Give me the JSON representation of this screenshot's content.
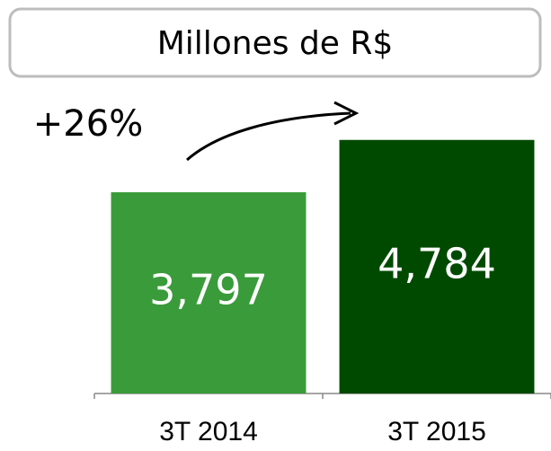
{
  "chart_data": {
    "type": "bar",
    "title": "Millones de R$",
    "annotation": "+26%",
    "categories": [
      "3T 2014",
      "3T 2015"
    ],
    "values": [
      3797,
      4784
    ],
    "value_labels": [
      "3,797",
      "4,784"
    ],
    "colors": [
      "#3a9b3a",
      "#004a00"
    ],
    "ylim": [
      0,
      5000
    ]
  }
}
